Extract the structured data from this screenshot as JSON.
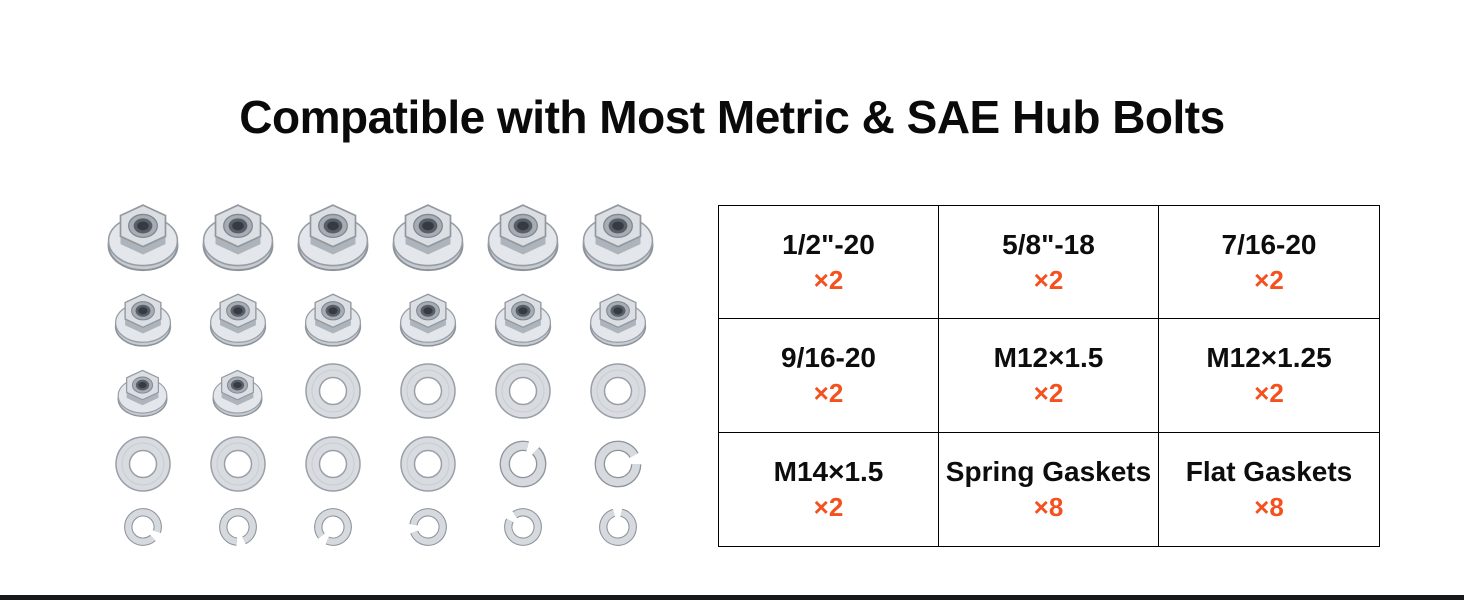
{
  "title": "Compatible with Most Metric & SAE Hub Bolts",
  "colors": {
    "accent": "#f4511e",
    "table_border": "#000000",
    "metal_light": "#e3e6ea",
    "metal_mid": "#c7ccd2",
    "metal_dark": "#8d939b",
    "bottom_bar": "#17181a"
  },
  "spec_table": {
    "cells": [
      {
        "label": "1/2\"-20",
        "qty": "×2"
      },
      {
        "label": "5/8\"-18",
        "qty": "×2"
      },
      {
        "label": "7/16-20",
        "qty": "×2"
      },
      {
        "label": "9/16-20",
        "qty": "×2"
      },
      {
        "label": "M12×1.5",
        "qty": "×2"
      },
      {
        "label": "M12×1.25",
        "qty": "×2"
      },
      {
        "label": "M14×1.5",
        "qty": "×2"
      },
      {
        "label": "Spring Gaskets",
        "qty": "×8"
      },
      {
        "label": "Flat Gaskets",
        "qty": "×8"
      }
    ]
  },
  "hardware_grid": {
    "rows": [
      [
        "flange-nut-large",
        "flange-nut-large",
        "flange-nut-large",
        "flange-nut-large",
        "flange-nut-large",
        "flange-nut-large"
      ],
      [
        "flange-nut-medium",
        "flange-nut-medium",
        "flange-nut-medium",
        "flange-nut-medium",
        "flange-nut-medium",
        "flange-nut-medium"
      ],
      [
        "flange-nut-small",
        "flange-nut-small",
        "flat-washer",
        "flat-washer",
        "flat-washer",
        "flat-washer"
      ],
      [
        "flat-washer",
        "flat-washer",
        "flat-washer",
        "flat-washer",
        "spring-washer-medium",
        "spring-washer-medium"
      ],
      [
        "spring-washer-small",
        "spring-washer-small",
        "spring-washer-small",
        "spring-washer-small",
        "spring-washer-small",
        "spring-washer-small"
      ]
    ]
  }
}
